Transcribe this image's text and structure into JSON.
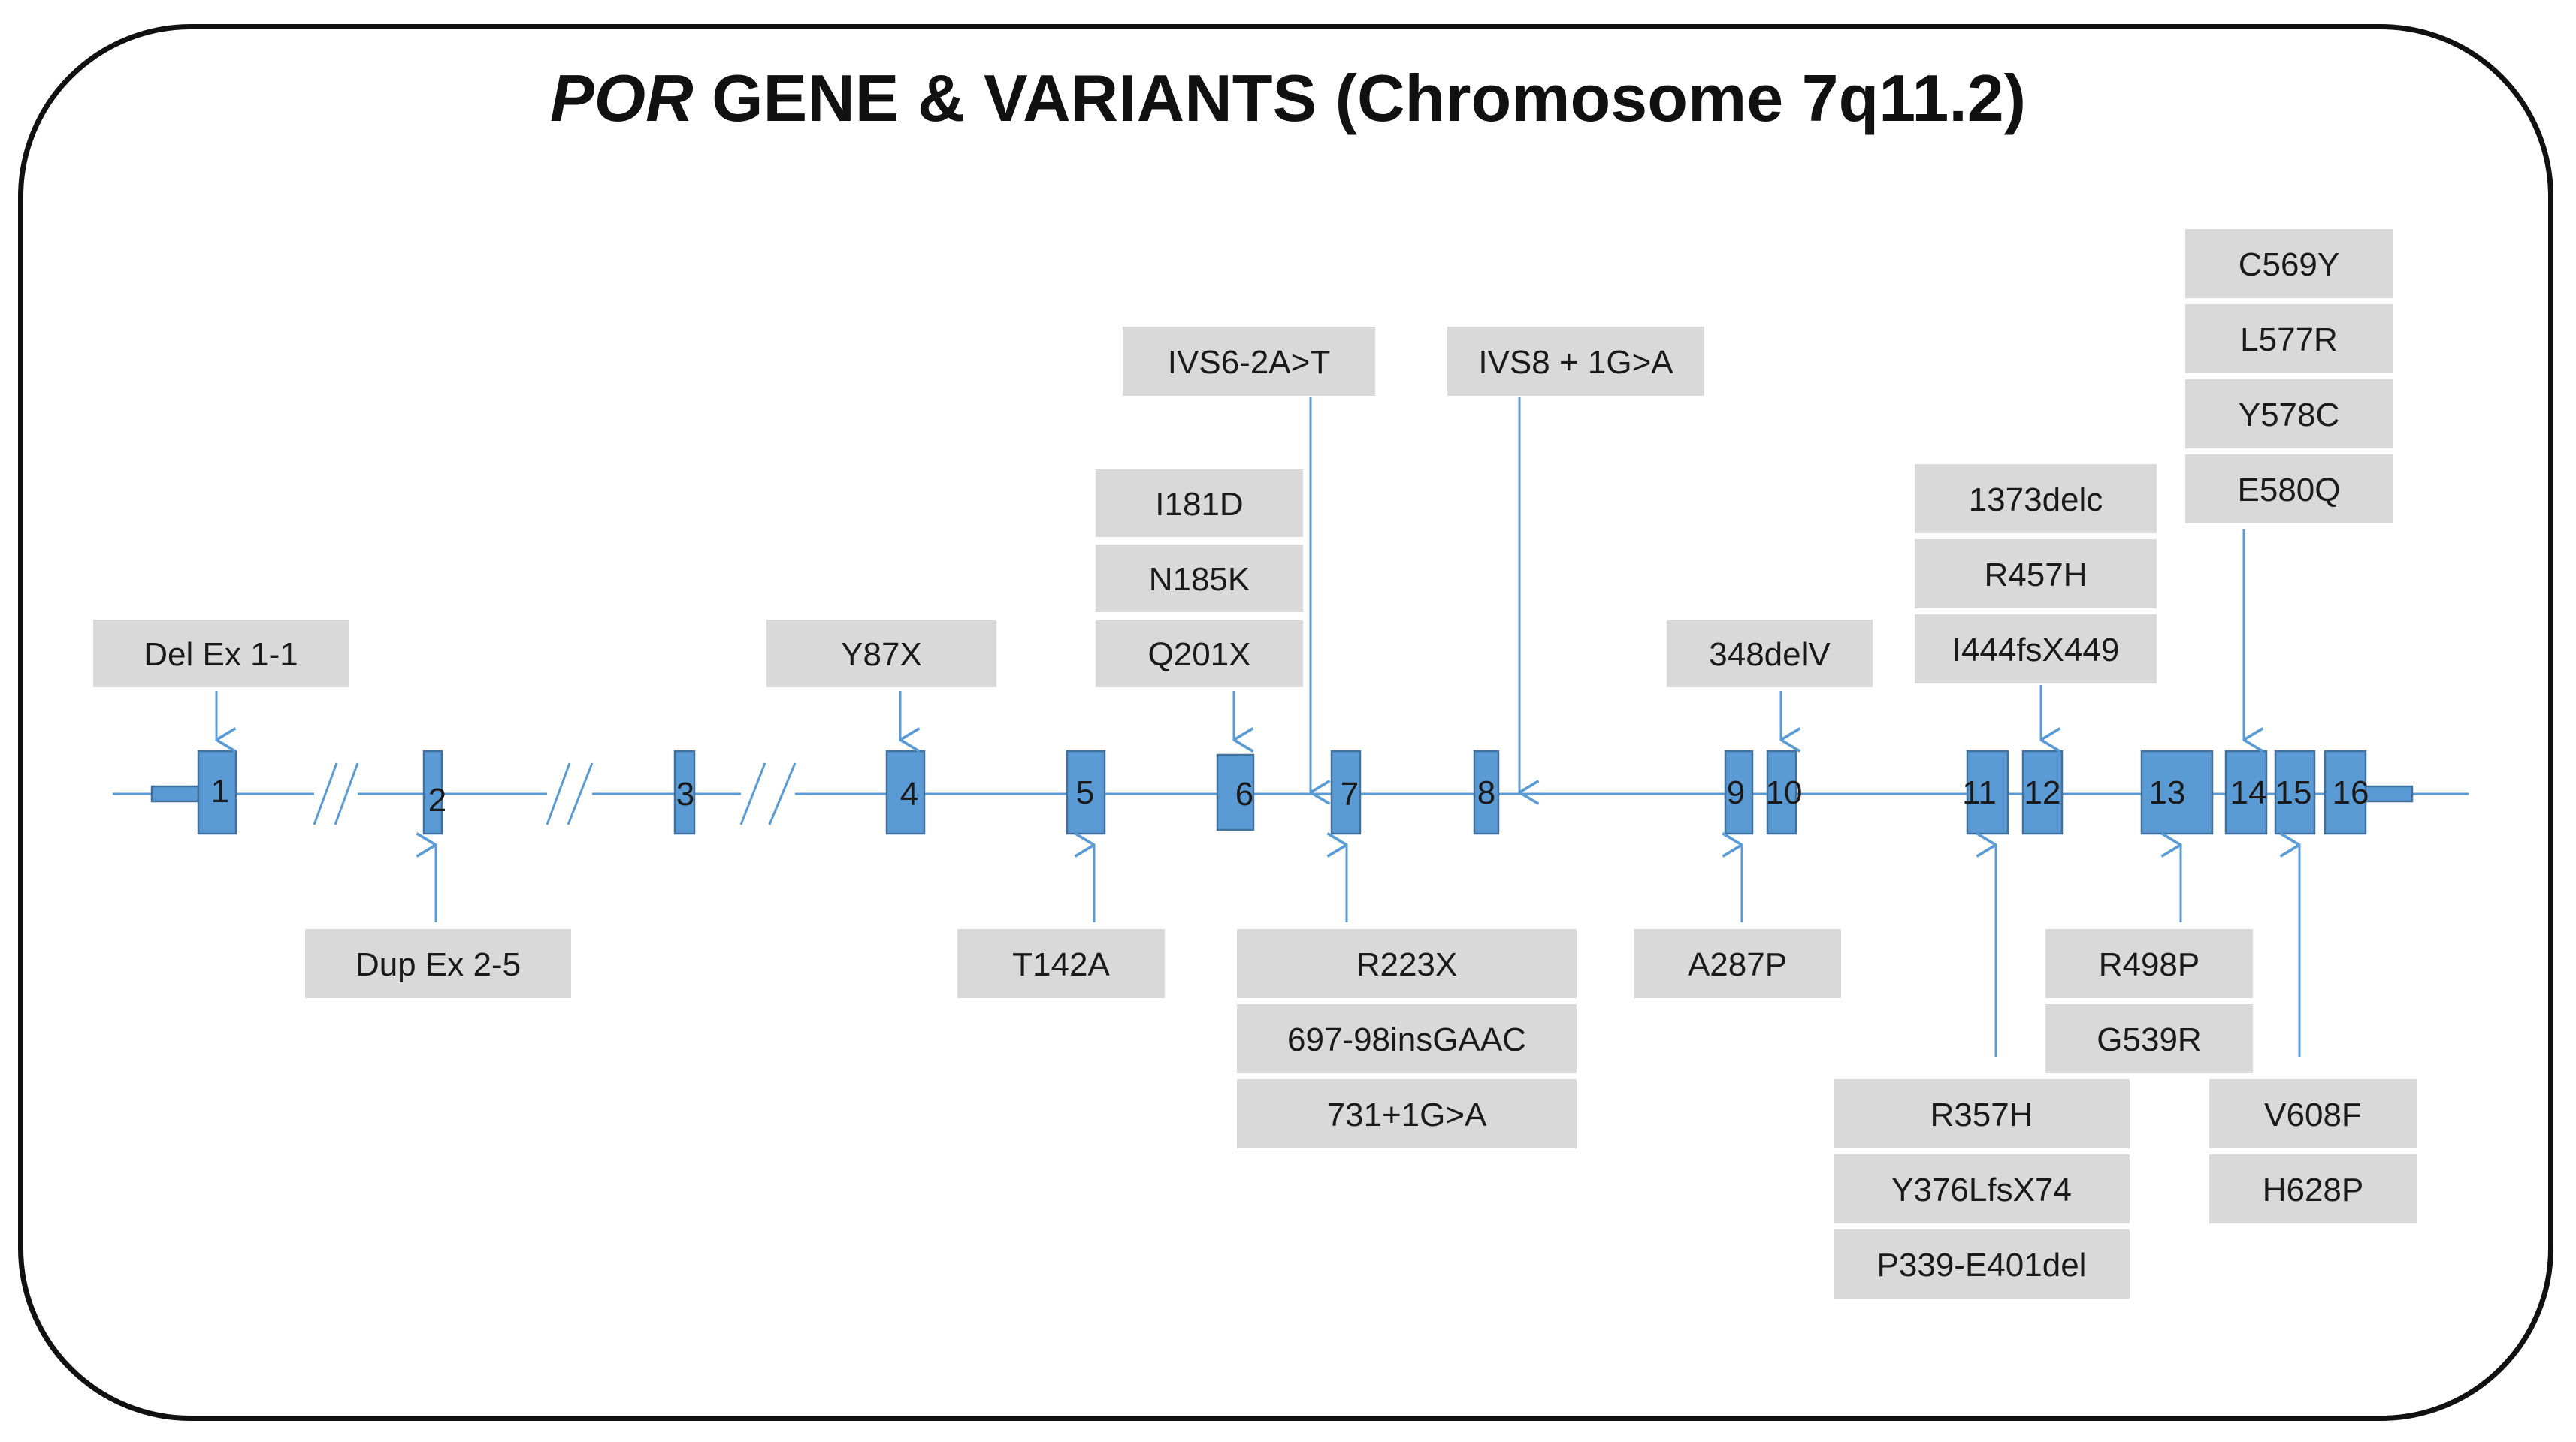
{
  "title": {
    "gene": "POR",
    "rest": " GENE & VARIANTS (Chromosome 7q11.2)"
  },
  "colors": {
    "exon_fill": "#5b9bd5",
    "exon_stroke": "#41719c",
    "line": "#5b9bd5",
    "label_box": "#d9d9d9",
    "frame": "#111111"
  },
  "exons": [
    {
      "number": "1"
    },
    {
      "number": "2"
    },
    {
      "number": "3"
    },
    {
      "number": "4"
    },
    {
      "number": "5"
    },
    {
      "number": "6"
    },
    {
      "number": "7"
    },
    {
      "number": "8"
    },
    {
      "number": "9"
    },
    {
      "number": "10"
    },
    {
      "number": "11"
    },
    {
      "number": "12"
    },
    {
      "number": "13"
    },
    {
      "number": "14"
    },
    {
      "number": "15"
    },
    {
      "number": "16"
    }
  ],
  "variants_above": [
    {
      "exon": "1",
      "labels": [
        "Del Ex 1-1"
      ]
    },
    {
      "exon": "4",
      "labels": [
        "Y87X"
      ]
    },
    {
      "exon": "6",
      "labels": [
        "I181D",
        "N185K",
        "Q201X"
      ]
    },
    {
      "exon": "intron 6-7",
      "labels": [
        "IVS6-2A>T"
      ]
    },
    {
      "exon": "intron 8",
      "labels": [
        "IVS8 + 1G>A"
      ]
    },
    {
      "exon": "10",
      "labels": [
        "348delV"
      ]
    },
    {
      "exon": "12",
      "labels": [
        "1373delc",
        "R457H",
        "I444fsX449"
      ]
    },
    {
      "exon": "14",
      "labels": [
        "C569Y",
        "L577R",
        "Y578C",
        "E580Q"
      ]
    }
  ],
  "variants_below": [
    {
      "exon": "2",
      "labels": [
        "Dup Ex 2-5"
      ]
    },
    {
      "exon": "5",
      "labels": [
        "T142A"
      ]
    },
    {
      "exon": "7",
      "labels": [
        "R223X",
        "697-98insGAAC",
        "731+1G>A"
      ]
    },
    {
      "exon": "9",
      "labels": [
        "A287P"
      ]
    },
    {
      "exon": "11",
      "labels": [
        "R357H",
        "Y376LfsX74",
        "P339-E401del"
      ]
    },
    {
      "exon": "13",
      "labels": [
        "R498P",
        "G539R"
      ]
    },
    {
      "exon": "15",
      "labels": [
        "V608F",
        "H628P"
      ]
    }
  ]
}
